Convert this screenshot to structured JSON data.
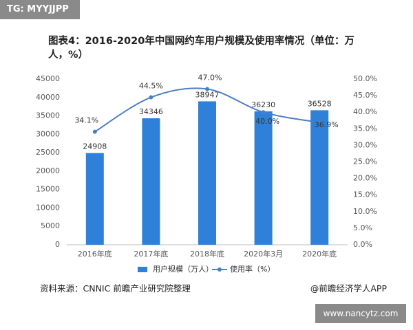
{
  "badge": "TG: MYYJJPP",
  "source": "资料来源：CNNIC 前瞻产业研究院整理",
  "credit": "@前瞻经济学人APP",
  "website": "www.nancytz.com",
  "chart_data": {
    "type": "bar",
    "title": "图表4：2016-2020年中国网约车用户规模及使用率情况（单位：万人，%）",
    "categories": [
      "2016年底",
      "2017年底",
      "2018年底",
      "2020年3月",
      "2020年底"
    ],
    "series": [
      {
        "name": "用户规模（万人）",
        "type": "bar",
        "color": "#2f80d8",
        "values": [
          24908,
          34346,
          38947,
          36230,
          36528
        ]
      },
      {
        "name": "使用率（%）",
        "type": "line",
        "axis": "y2",
        "color": "#4a7fc4",
        "values": [
          34.1,
          44.5,
          47.0,
          40.0,
          36.9
        ],
        "value_labels": [
          "34.1%",
          "44.5%",
          "47.0%",
          "40.0%",
          "36.9%"
        ]
      }
    ],
    "ylim": [
      0,
      45000
    ],
    "yticks": [
      0,
      5000,
      10000,
      15000,
      20000,
      25000,
      30000,
      35000,
      40000,
      45000
    ],
    "y2lim": [
      0,
      50
    ],
    "y2ticks": [
      {
        "value": 0,
        "label": "0.0%"
      },
      {
        "value": 5,
        "label": "5.0%"
      },
      {
        "value": 10,
        "label": "10.0%"
      },
      {
        "value": 15,
        "label": "15.0%"
      },
      {
        "value": 20,
        "label": "20.0%"
      },
      {
        "value": 25,
        "label": "25.0%"
      },
      {
        "value": 30,
        "label": "30.0%"
      },
      {
        "value": 35,
        "label": "35.0%"
      },
      {
        "value": 40,
        "label": "40.0%"
      },
      {
        "value": 45,
        "label": "45.0%"
      },
      {
        "value": 50,
        "label": "50.0%"
      }
    ],
    "grid": false
  }
}
